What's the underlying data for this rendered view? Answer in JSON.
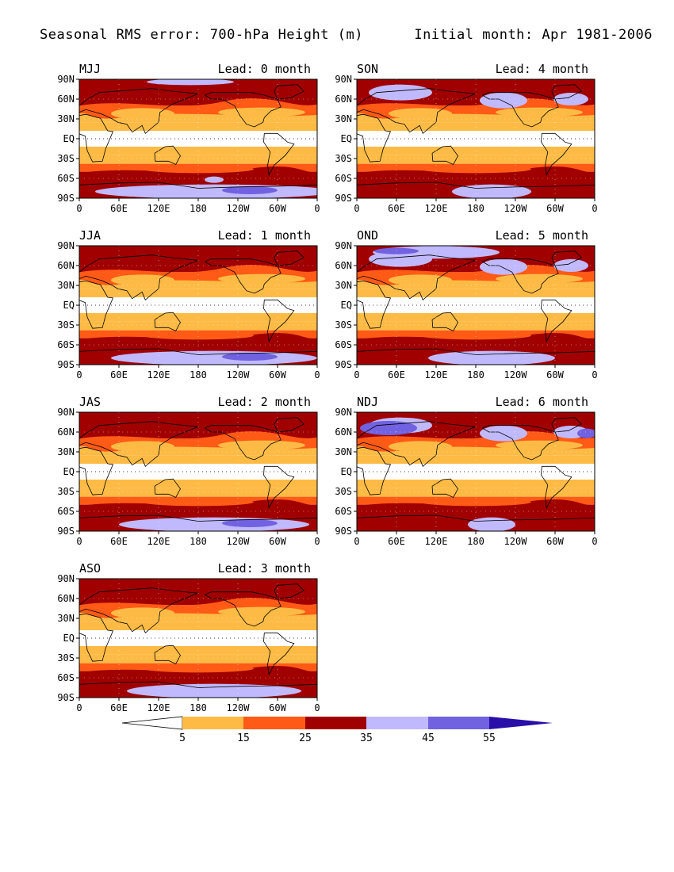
{
  "title": {
    "left": "Seasonal RMS error: 700-hPa Height (m)",
    "right": "Initial month: Apr 1981-2006"
  },
  "lat_labels": [
    "90N",
    "60N",
    "30N",
    "EQ",
    "30S",
    "60S",
    "90S"
  ],
  "lon_labels": [
    "0",
    "60E",
    "120E",
    "180",
    "120W",
    "60W",
    "0"
  ],
  "lead_label_template": "Lead: {n} month",
  "panels": [
    {
      "season": "MJJ",
      "lead": 0
    },
    {
      "season": "JJA",
      "lead": 1
    },
    {
      "season": "JAS",
      "lead": 2
    },
    {
      "season": "ASO",
      "lead": 3
    },
    {
      "season": "SON",
      "lead": 4
    },
    {
      "season": "OND",
      "lead": 5
    },
    {
      "season": "NDJ",
      "lead": 6
    }
  ],
  "colorbar": {
    "ticks": [
      "5",
      "15",
      "25",
      "35",
      "45",
      "55"
    ],
    "colors": {
      "lt5": "#ffffff",
      "5-15": "#fdbb45",
      "15-25": "#ff5a16",
      "25-35": "#a00000",
      "35-45": "#c0b9fe",
      "45-55": "#7062e0",
      "gt55": "#2a0ea8"
    }
  }
}
